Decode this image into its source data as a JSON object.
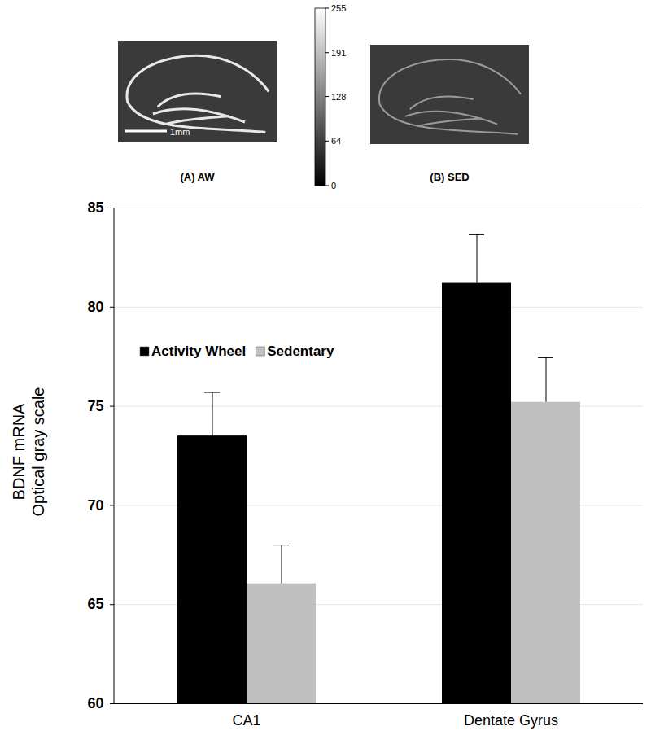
{
  "chart_data": {
    "type": "bar",
    "categories": [
      "CA1",
      "Dentate Gyrus"
    ],
    "series": [
      {
        "name": "Activity Wheel",
        "color": "#000000",
        "values": [
          73.5,
          81.2
        ],
        "errors": [
          2.2,
          2.45
        ]
      },
      {
        "name": "Sedentary",
        "color": "#c0c0c0",
        "values": [
          66.05,
          75.2
        ],
        "errors": [
          1.95,
          2.25
        ]
      }
    ],
    "ylabel": [
      "BDNF mRNA",
      "Optical gray scale"
    ],
    "ylim": [
      60,
      85
    ],
    "yticks": [
      60,
      65,
      70,
      75,
      80,
      85
    ],
    "grid": true,
    "legend": "upper left"
  },
  "images": [
    {
      "label": "(A) AW",
      "scale_bar": "1mm"
    },
    {
      "label": "(B) SED"
    }
  ],
  "colorbar": {
    "range": [
      0,
      255
    ],
    "ticks": [
      0,
      64,
      128,
      191,
      255
    ]
  }
}
